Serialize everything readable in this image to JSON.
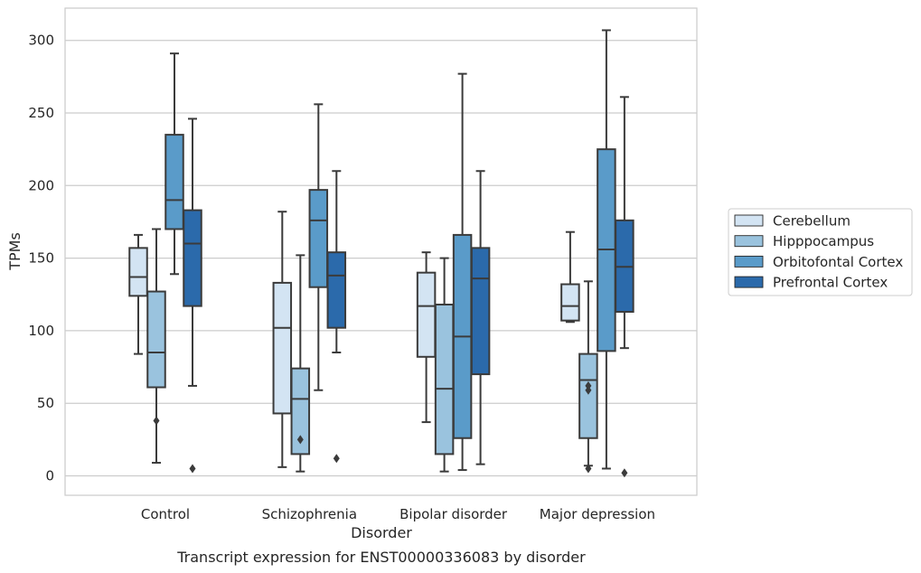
{
  "chart_data": {
    "type": "box",
    "title": "",
    "caption": "Transcript expression for ENST00000336083 by disorder",
    "xlabel": "Disorder",
    "ylabel": "TPMs",
    "ylim": [
      -13,
      322
    ],
    "yticks": [
      0,
      50,
      100,
      150,
      200,
      250,
      300
    ],
    "grid": "horizontal",
    "legend_position": "right",
    "categories": [
      "Control",
      "Schizophrenia",
      "Bipolar disorder",
      "Major depression"
    ],
    "series": [
      {
        "name": "Cerebellum",
        "color": "#d3e4f3",
        "boxes": [
          {
            "whislo": 84,
            "q1": 124,
            "med": 137,
            "q3": 157,
            "whishi": 166,
            "fliers": []
          },
          {
            "whislo": 6,
            "q1": 43,
            "med": 102,
            "q3": 133,
            "whishi": 182,
            "fliers": []
          },
          {
            "whislo": 37,
            "q1": 82,
            "med": 117,
            "q3": 140,
            "whishi": 154,
            "fliers": []
          },
          {
            "whislo": 106,
            "q1": 107,
            "med": 117,
            "q3": 132,
            "whishi": 168,
            "fliers": []
          }
        ]
      },
      {
        "name": "Hipppocampus",
        "color": "#9ac3de",
        "boxes": [
          {
            "whislo": 9,
            "q1": 61,
            "med": 85,
            "q3": 127,
            "whishi": 170,
            "fliers": [
              38
            ]
          },
          {
            "whislo": 3,
            "q1": 15,
            "med": 53,
            "q3": 74,
            "whishi": 152,
            "fliers": [
              25
            ]
          },
          {
            "whislo": 3,
            "q1": 15,
            "med": 60,
            "q3": 118,
            "whishi": 150,
            "fliers": []
          },
          {
            "whislo": 7,
            "q1": 26,
            "med": 66,
            "q3": 84,
            "whishi": 134,
            "fliers": [
              5,
              59,
              62
            ]
          }
        ]
      },
      {
        "name": "Orbitofontal Cortex",
        "color": "#5a9bc9",
        "boxes": [
          {
            "whislo": 139,
            "q1": 170,
            "med": 190,
            "q3": 235,
            "whishi": 291,
            "fliers": []
          },
          {
            "whislo": 59,
            "q1": 130,
            "med": 176,
            "q3": 197,
            "whishi": 256,
            "fliers": []
          },
          {
            "whislo": 4,
            "q1": 26,
            "med": 96,
            "q3": 166,
            "whishi": 277,
            "fliers": []
          },
          {
            "whislo": 5,
            "q1": 86,
            "med": 156,
            "q3": 225,
            "whishi": 307,
            "fliers": []
          }
        ]
      },
      {
        "name": "Prefrontal Cortex",
        "color": "#2b6aab",
        "boxes": [
          {
            "whislo": 62,
            "q1": 117,
            "med": 160,
            "q3": 183,
            "whishi": 246,
            "fliers": [
              5
            ]
          },
          {
            "whislo": 85,
            "q1": 102,
            "med": 138,
            "q3": 154,
            "whishi": 210,
            "fliers": [
              12
            ]
          },
          {
            "whislo": 8,
            "q1": 70,
            "med": 136,
            "q3": 157,
            "whishi": 210,
            "fliers": []
          },
          {
            "whislo": 88,
            "q1": 113,
            "med": 144,
            "q3": 176,
            "whishi": 261,
            "fliers": [
              2
            ]
          }
        ]
      }
    ]
  }
}
